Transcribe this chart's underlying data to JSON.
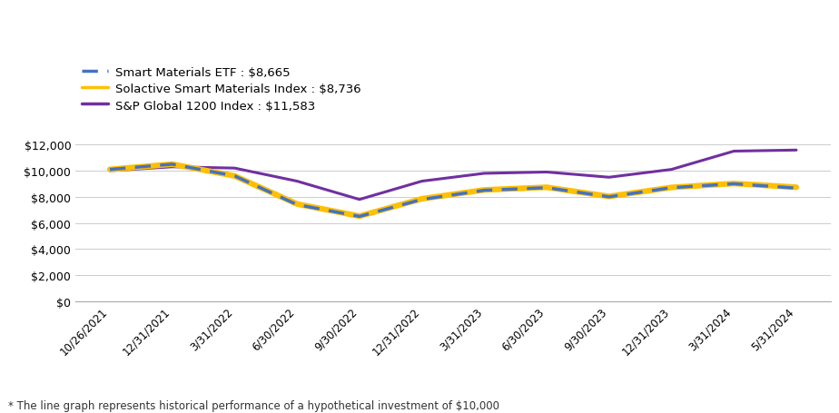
{
  "x_labels": [
    "10/26/2021",
    "12/31/2021",
    "3/31/2022",
    "6/30/2022",
    "9/30/2022",
    "12/31/2022",
    "3/31/2023",
    "6/30/2023",
    "9/30/2023",
    "12/31/2023",
    "3/31/2024",
    "5/31/2024"
  ],
  "etf": [
    10100,
    10500,
    9600,
    7400,
    6500,
    7800,
    8500,
    8700,
    8000,
    8700,
    9000,
    8665
  ],
  "solactive": [
    10100,
    10500,
    9600,
    7450,
    6520,
    7850,
    8530,
    8730,
    8030,
    8720,
    9020,
    8736
  ],
  "sp500": [
    10000,
    10300,
    10200,
    9200,
    7800,
    9200,
    9800,
    9900,
    9500,
    10100,
    11500,
    11583
  ],
  "etf_color": "#4472C4",
  "solactive_color": "#FFC000",
  "sp500_color": "#7030A0",
  "etf_label": "Smart Materials ETF : $8,665",
  "solactive_label": "Solactive Smart Materials Index : $8,736",
  "sp500_label": "S&P Global 1200 Index : $11,583",
  "ylim": [
    0,
    13000
  ],
  "yticks": [
    0,
    2000,
    4000,
    6000,
    8000,
    10000,
    12000
  ],
  "footnote": "* The line graph represents historical performance of a hypothetical investment of $10,000",
  "background_color": "#ffffff"
}
